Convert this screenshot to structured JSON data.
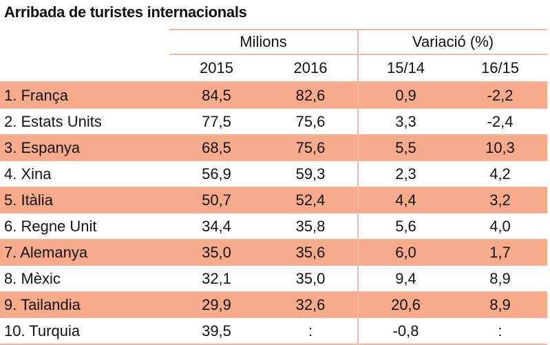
{
  "chart_data": {
    "type": "table",
    "title": "Arribada de turistes internacionals",
    "group_headers": [
      "Milions",
      "Variació (%)"
    ],
    "columns": [
      "2015",
      "2016",
      "15/14",
      "16/15"
    ],
    "rows": [
      {
        "country": "1. França",
        "values": [
          "84,5",
          "82,6",
          "0,9",
          "-2,2"
        ]
      },
      {
        "country": "2. Estats Units",
        "values": [
          "77,5",
          "75,6",
          "3,3",
          "-2,4"
        ]
      },
      {
        "country": "3. Espanya",
        "values": [
          "68,5",
          "75,6",
          "5,5",
          "10,3"
        ]
      },
      {
        "country": "4. Xina",
        "values": [
          "56,9",
          "59,3",
          "2,3",
          "4,2"
        ]
      },
      {
        "country": "5. Itàlia",
        "values": [
          "50,7",
          "52,4",
          "4,4",
          "3,2"
        ]
      },
      {
        "country": "6. Regne Unit",
        "values": [
          "34,4",
          "35,8",
          "5,6",
          "4,0"
        ]
      },
      {
        "country": "7. Alemanya",
        "values": [
          "35,0",
          "35,6",
          "6,0",
          "1,7"
        ]
      },
      {
        "country": "8. Mèxic",
        "values": [
          "32,1",
          "35,0",
          "9,4",
          "8,9"
        ]
      },
      {
        "country": "9. Tailandia",
        "values": [
          "29,9",
          "32,6",
          "20,6",
          "8,9"
        ]
      },
      {
        "country": "10. Turquia",
        "values": [
          "39,5",
          ":",
          "-0,8",
          ":"
        ]
      }
    ],
    "colors": {
      "row_shade": "#f8ab8b",
      "rule": "#f2b89f"
    }
  }
}
